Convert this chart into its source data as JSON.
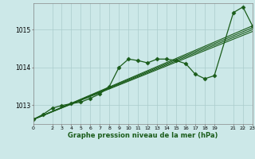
{
  "bg_color": "#cce8e8",
  "grid_color": "#aacccc",
  "line_color": "#1a5c1a",
  "marker_color": "#1a5c1a",
  "xlabel": "Graphe pression niveau de la mer (hPa)",
  "xlim": [
    0,
    23
  ],
  "ylim": [
    1012.5,
    1015.7
  ],
  "yticks": [
    1013,
    1014,
    1015
  ],
  "xticks": [
    0,
    2,
    3,
    4,
    5,
    6,
    7,
    8,
    9,
    10,
    11,
    12,
    13,
    14,
    15,
    16,
    17,
    18,
    19,
    21,
    22,
    23
  ],
  "series": [
    {
      "x": [
        0,
        1,
        2,
        3,
        4,
        5,
        6,
        7,
        8,
        9,
        10,
        11,
        12,
        13,
        14,
        15,
        16,
        17,
        18,
        19,
        21,
        22,
        23
      ],
      "y": [
        1012.62,
        1012.75,
        1012.92,
        1012.99,
        1013.04,
        1013.08,
        1013.18,
        1013.3,
        1013.5,
        1014.0,
        1014.22,
        1014.18,
        1014.12,
        1014.22,
        1014.22,
        1014.18,
        1014.1,
        1013.82,
        1013.7,
        1013.78,
        1015.45,
        1015.6,
        1015.1
      ],
      "marker": "D",
      "lw": 0.9,
      "markersize": 2.5
    },
    {
      "x": [
        0,
        23
      ],
      "y": [
        1012.62,
        1015.1
      ],
      "marker": null,
      "lw": 0.8
    },
    {
      "x": [
        0,
        23
      ],
      "y": [
        1012.62,
        1015.05
      ],
      "marker": null,
      "lw": 0.8
    },
    {
      "x": [
        0,
        23
      ],
      "y": [
        1012.62,
        1015.0
      ],
      "marker": null,
      "lw": 0.8
    },
    {
      "x": [
        0,
        23
      ],
      "y": [
        1012.62,
        1014.95
      ],
      "marker": null,
      "lw": 0.8
    }
  ]
}
